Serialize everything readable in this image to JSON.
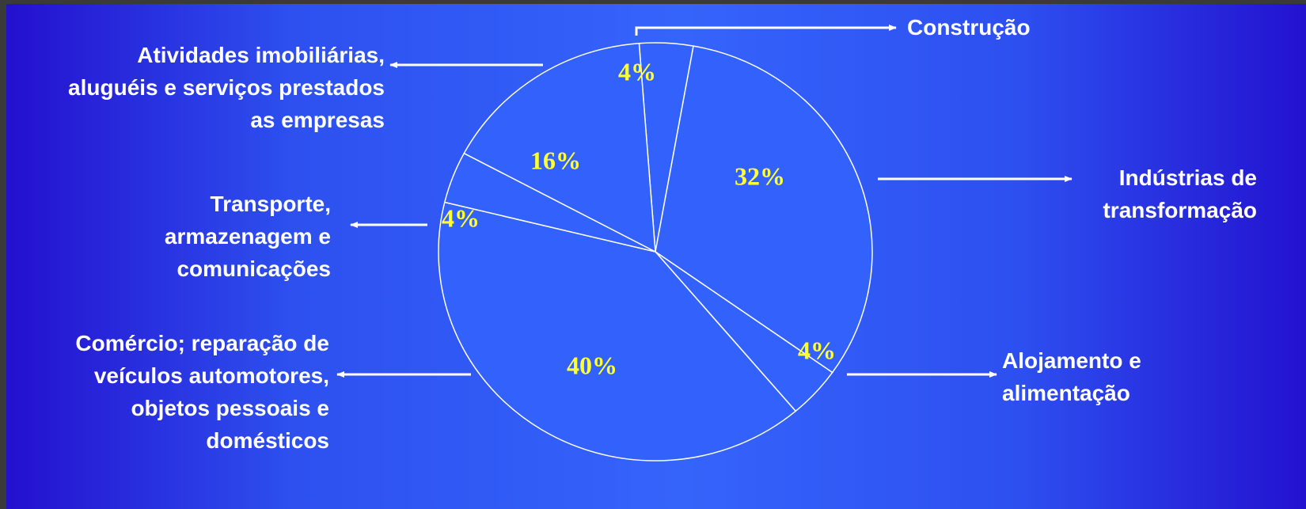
{
  "chart_data": {
    "type": "pie",
    "title": "",
    "slices": [
      {
        "label": "Construção",
        "value": 4,
        "value_label": "4%"
      },
      {
        "label": "Indústrias de\ntransformação",
        "value": 32,
        "value_label": "32%"
      },
      {
        "label": "Alojamento e\nalimentação",
        "value": 4,
        "value_label": "4%"
      },
      {
        "label": "Comércio; reparação de\nveículos automotores,\nobjetos pessoais e\ndomésticos",
        "value": 40,
        "value_label": "40%"
      },
      {
        "label": "Transporte,\narmazenagem e\ncomunicações",
        "value": 4,
        "value_label": "4%"
      },
      {
        "label": "Atividades imobiliárias,\naluguéis e serviços prestados\nas empresas",
        "value": 16,
        "value_label": "16%"
      }
    ]
  },
  "colors": {
    "slice_fill": "#3262fb",
    "slice_stroke": "#ffffff",
    "value_label": "#ffff33",
    "category_label": "#ffffff"
  }
}
